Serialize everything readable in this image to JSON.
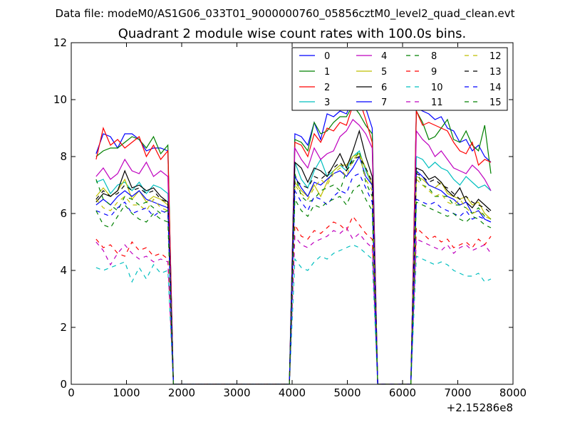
{
  "figure": {
    "suptitle": "Data file: modeM0/AS1G06_033T01_9000000760_05856cztM0_level2_quad_clean.evt",
    "title": "Quadrant 2 module wise count rates with 100.0s bins.",
    "x_offset_label": "+2.15286e8"
  },
  "chart_data": {
    "type": "line",
    "title": "Quadrant 2 module wise count rates with 100.0s bins.",
    "xlabel": "",
    "ylabel": "",
    "xlim": [
      0,
      8000
    ],
    "ylim": [
      0,
      12
    ],
    "x_offset": "+2.15286e8",
    "x_ticks": [
      "0",
      "1000",
      "2000",
      "3000",
      "4000",
      "5000",
      "6000",
      "7000",
      "8000"
    ],
    "y_ticks": [
      "0",
      "2",
      "4",
      "6",
      "8",
      "10",
      "12"
    ],
    "grid": false,
    "legend_position": "top-right",
    "segments": [
      {
        "x_start": 450,
        "x_end": 1750
      },
      {
        "x_start": 4050,
        "x_end": 5450
      },
      {
        "x_start": 6250,
        "x_end": 7600
      }
    ],
    "gaps": [
      {
        "x_start": 1850,
        "x_end": 3950
      },
      {
        "x_start": 5550,
        "x_end": 6150
      }
    ],
    "series": [
      {
        "name": "0",
        "color": "#0000ff",
        "dashed": false,
        "values": [
          [
            8.1,
            8.8,
            8.7,
            8.3,
            8.8,
            8.8,
            8.6,
            8.2,
            8.3,
            8.3,
            8.2
          ],
          [
            8.8,
            8.7,
            8.4,
            9.2,
            8.6,
            9.5,
            9.4,
            9.6,
            9.5,
            10.0,
            10.2,
            9.7,
            9.0
          ],
          [
            9.7,
            9.6,
            9.5,
            9.3,
            9.4,
            9.0,
            8.9,
            8.5,
            8.6,
            8.2,
            8.4,
            8.0,
            7.8
          ]
        ]
      },
      {
        "name": "1",
        "color": "#008000",
        "dashed": false,
        "values": [
          [
            8.0,
            8.2,
            8.3,
            8.3,
            8.5,
            8.7,
            8.6,
            8.3,
            8.7,
            8.1,
            8.4
          ],
          [
            8.6,
            8.5,
            8.2,
            9.2,
            8.8,
            8.9,
            9.2,
            9.4,
            9.4,
            9.8,
            9.5,
            9.1,
            8.8
          ],
          [
            9.6,
            9.2,
            8.6,
            8.7,
            9.0,
            9.3,
            8.6,
            8.5,
            8.9,
            8.4,
            8.2,
            9.1,
            7.4
          ]
        ]
      },
      {
        "name": "2",
        "color": "#ff0000",
        "dashed": false,
        "values": [
          [
            7.9,
            9.0,
            8.4,
            8.6,
            8.3,
            8.5,
            8.7,
            8.0,
            8.4,
            7.9,
            8.2
          ],
          [
            8.5,
            8.4,
            8.0,
            8.8,
            8.5,
            9.0,
            8.9,
            9.2,
            9.1,
            9.8,
            10.0,
            9.3,
            8.5
          ],
          [
            9.6,
            9.1,
            9.2,
            9.1,
            9.0,
            8.9,
            8.5,
            8.2,
            8.1,
            8.5,
            7.7,
            7.9,
            7.8
          ]
        ]
      },
      {
        "name": "3",
        "color": "#00bfbf",
        "dashed": false,
        "values": [
          [
            7.1,
            7.2,
            6.7,
            7.0,
            7.1,
            6.8,
            7.1,
            6.7,
            7.0,
            6.9,
            6.7
          ],
          [
            7.8,
            7.2,
            6.9,
            7.5,
            7.9,
            7.3,
            7.5,
            7.7,
            7.5,
            8.0,
            8.2,
            7.5,
            7.0
          ],
          [
            8.0,
            7.9,
            7.6,
            7.8,
            7.6,
            7.5,
            7.2,
            7.0,
            7.3,
            7.1,
            6.9,
            7.0,
            6.8
          ]
        ]
      },
      {
        "name": "4",
        "color": "#bf00bf",
        "dashed": false,
        "values": [
          [
            7.3,
            7.6,
            7.2,
            7.4,
            7.9,
            7.5,
            7.4,
            7.8,
            7.3,
            7.5,
            7.3
          ],
          [
            8.3,
            7.9,
            7.6,
            8.3,
            7.9,
            8.1,
            8.2,
            8.7,
            8.9,
            9.3,
            9.1,
            8.8,
            8.3
          ],
          [
            8.9,
            8.6,
            8.4,
            8.0,
            8.2,
            7.9,
            7.6,
            7.5,
            7.4,
            7.7,
            7.5,
            7.2,
            6.8
          ]
        ]
      },
      {
        "name": "5",
        "color": "#bfbf00",
        "dashed": false,
        "values": [
          [
            6.6,
            6.9,
            6.6,
            6.8,
            7.2,
            6.5,
            6.8,
            6.4,
            6.6,
            6.5,
            6.3
          ],
          [
            7.1,
            6.8,
            6.6,
            7.0,
            6.6,
            7.1,
            7.5,
            7.7,
            7.7,
            8.0,
            8.1,
            7.6,
            7.0
          ],
          [
            7.3,
            7.2,
            7.0,
            6.9,
            7.1,
            6.7,
            6.6,
            6.5,
            6.6,
            6.3,
            6.4,
            6.0,
            5.8
          ]
        ]
      },
      {
        "name": "6",
        "color": "#000000",
        "dashed": false,
        "values": [
          [
            6.4,
            6.7,
            6.6,
            6.8,
            7.5,
            6.9,
            7.0,
            6.8,
            6.9,
            6.6,
            6.4
          ],
          [
            7.8,
            7.6,
            7.1,
            7.6,
            7.5,
            7.3,
            7.7,
            8.1,
            7.6,
            8.2,
            8.9,
            8.0,
            7.3
          ],
          [
            7.6,
            7.5,
            7.2,
            7.3,
            7.1,
            6.8,
            6.6,
            6.9,
            6.4,
            6.2,
            6.5,
            6.3,
            6.1
          ]
        ]
      },
      {
        "name": "7",
        "color": "#0000ff",
        "dashed": false,
        "values": [
          [
            6.3,
            6.5,
            6.3,
            6.6,
            6.8,
            6.6,
            6.8,
            6.5,
            6.4,
            6.3,
            6.2
          ],
          [
            7.3,
            6.9,
            6.6,
            7.1,
            7.0,
            7.2,
            7.4,
            7.5,
            7.3,
            7.6,
            8.0,
            7.3,
            7.0
          ],
          [
            7.5,
            7.3,
            7.0,
            6.9,
            6.8,
            6.6,
            6.5,
            6.3,
            6.4,
            6.0,
            6.1,
            5.8,
            5.7
          ]
        ]
      },
      {
        "name": "8",
        "color": "#008000",
        "dashed": true,
        "values": [
          [
            7.2,
            6.5,
            6.3,
            6.1,
            6.6,
            6.5,
            6.3,
            6.4,
            6.2,
            6.0,
            6.1
          ],
          [
            7.4,
            6.6,
            6.4,
            6.5,
            6.8,
            6.9,
            7.0,
            6.8,
            7.5,
            7.8,
            8.2,
            7.1,
            6.6
          ],
          [
            7.5,
            7.0,
            6.9,
            6.6,
            6.6,
            6.6,
            6.3,
            6.3,
            6.2,
            6.0,
            6.2,
            5.9,
            5.8
          ]
        ]
      },
      {
        "name": "9",
        "color": "#ff0000",
        "dashed": true,
        "values": [
          [
            5.1,
            4.8,
            4.9,
            4.6,
            4.5,
            5.0,
            4.7,
            4.8,
            4.5,
            4.6,
            4.4
          ],
          [
            5.6,
            5.2,
            5.1,
            5.4,
            5.3,
            5.5,
            5.7,
            5.6,
            5.4,
            5.9,
            5.6,
            5.3,
            5.1
          ],
          [
            5.5,
            5.3,
            5.1,
            5.2,
            5.0,
            5.1,
            4.8,
            4.9,
            5.0,
            4.8,
            5.1,
            4.9,
            5.2
          ]
        ]
      },
      {
        "name": "10",
        "color": "#00bfbf",
        "dashed": true,
        "values": [
          [
            4.1,
            4.0,
            4.1,
            4.2,
            4.3,
            3.6,
            4.1,
            3.7,
            4.2,
            3.9,
            4.0
          ],
          [
            4.4,
            4.1,
            4.0,
            4.3,
            4.5,
            4.4,
            4.6,
            4.7,
            4.8,
            4.9,
            4.8,
            4.6,
            4.4
          ],
          [
            4.5,
            4.4,
            4.3,
            4.2,
            4.3,
            4.2,
            4.0,
            3.9,
            3.8,
            3.8,
            3.9,
            3.6,
            3.7
          ]
        ]
      },
      {
        "name": "11",
        "color": "#bf00bf",
        "dashed": true,
        "values": [
          [
            5.0,
            4.7,
            4.2,
            4.6,
            4.9,
            4.6,
            4.4,
            4.5,
            4.3,
            4.4,
            4.3
          ],
          [
            5.2,
            4.9,
            4.8,
            5.0,
            5.1,
            5.2,
            5.4,
            5.3,
            5.5,
            5.1,
            5.3,
            5.0,
            4.8
          ],
          [
            5.1,
            5.0,
            4.9,
            4.8,
            4.7,
            4.9,
            4.6,
            4.8,
            4.9,
            4.7,
            4.8,
            4.9,
            4.6
          ]
        ]
      },
      {
        "name": "12",
        "color": "#bfbf00",
        "dashed": true,
        "values": [
          [
            6.5,
            6.2,
            6.1,
            6.4,
            6.6,
            6.3,
            6.3,
            6.1,
            6.5,
            6.2,
            6.1
          ],
          [
            7.0,
            6.7,
            6.5,
            6.9,
            7.2,
            7.0,
            7.4,
            7.6,
            7.3,
            7.9,
            8.1,
            7.2,
            6.8
          ],
          [
            7.2,
            7.0,
            6.8,
            6.6,
            6.7,
            6.4,
            6.3,
            6.5,
            6.2,
            6.0,
            6.1,
            5.9,
            5.8
          ]
        ]
      },
      {
        "name": "13",
        "color": "#000000",
        "dashed": true,
        "values": [
          [
            6.5,
            6.8,
            6.6,
            6.7,
            7.0,
            6.8,
            6.9,
            6.7,
            6.8,
            6.5,
            6.4
          ],
          [
            7.2,
            7.0,
            6.9,
            7.3,
            7.2,
            7.4,
            7.6,
            7.8,
            7.5,
            7.9,
            8.0,
            7.6,
            7.1
          ],
          [
            7.4,
            7.3,
            7.1,
            7.2,
            7.0,
            6.9,
            6.7,
            6.5,
            6.6,
            6.4,
            6.3,
            6.2,
            6.0
          ]
        ]
      },
      {
        "name": "14",
        "color": "#0000ff",
        "dashed": true,
        "values": [
          [
            6.1,
            6.0,
            5.9,
            6.2,
            6.4,
            6.0,
            6.1,
            6.2,
            5.9,
            6.1,
            6.0
          ],
          [
            6.8,
            6.4,
            6.1,
            6.6,
            6.5,
            6.3,
            6.6,
            6.8,
            6.7,
            7.3,
            7.4,
            6.9,
            6.4
          ],
          [
            6.5,
            6.4,
            6.3,
            6.4,
            6.2,
            6.1,
            6.0,
            5.9,
            6.1,
            5.8,
            5.9,
            5.8,
            5.7
          ]
        ]
      },
      {
        "name": "15",
        "color": "#008000",
        "dashed": true,
        "values": [
          [
            6.1,
            5.6,
            5.5,
            5.9,
            6.3,
            6.0,
            5.8,
            5.7,
            6.0,
            5.8,
            5.7
          ],
          [
            6.5,
            6.1,
            5.9,
            6.3,
            6.2,
            6.4,
            6.5,
            6.6,
            6.3,
            6.8,
            7.0,
            6.5,
            6.1
          ],
          [
            6.4,
            6.3,
            6.2,
            6.1,
            6.0,
            5.9,
            6.0,
            5.8,
            5.7,
            5.9,
            5.8,
            5.6,
            5.5
          ]
        ]
      }
    ]
  }
}
